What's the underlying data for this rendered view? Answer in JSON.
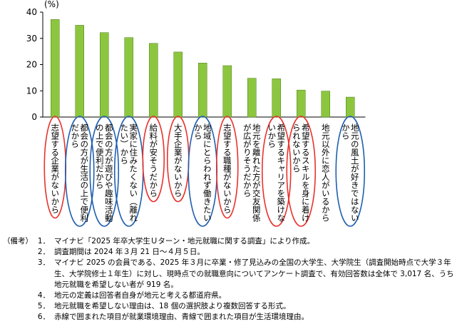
{
  "chart_data": {
    "type": "bar",
    "unit_label": "(%)",
    "ylim": [
      0,
      40
    ],
    "yticks": [
      0,
      10,
      20,
      30,
      40
    ],
    "bar_color": "#8cc63f",
    "categories": [
      "志望する企業がないから",
      "都会の方が生活の上で便利だから",
      "都会の方が遊びや趣味活動の上で便利だから",
      "実家に住みたくない（離れたい）から",
      "給料が安そうだから",
      "大手企業がないから",
      "地域にとらわれず働きたいから",
      "志望する職種がないから",
      "地元を離れた方が交友関係が広がりそうだから",
      "希望するキャリアを築けないから",
      "希望するスキルを身に着けられないから",
      "地元以外に恋人がいるから",
      "地元の風土が好きではないから"
    ],
    "values": [
      37.2,
      35.0,
      32.2,
      30.3,
      28.1,
      24.8,
      20.6,
      19.6,
      14.8,
      14.6,
      10.3,
      9.9,
      7.6
    ],
    "label_lines": [
      [
        "志望する企業がないから"
      ],
      [
        "都会の方が生活の上で便利",
        "だから"
      ],
      [
        "都会の方が遊びや趣味活動",
        "の上で便利だから"
      ],
      [
        "実家に住みたくない（離れ",
        "たい）から"
      ],
      [
        "給料が安そうだから"
      ],
      [
        "大手企業がないから"
      ],
      [
        "地域にとらわれず働きたい",
        "から"
      ],
      [
        "志望する職種がないから"
      ],
      [
        "地元を離れた方が交友関係",
        "が広がりそうだから"
      ],
      [
        "希望するキャリアを築けな",
        "いから"
      ],
      [
        "希望するスキルを身に着け",
        "られないから"
      ],
      [
        "地元以外に恋人がいるから"
      ],
      [
        "地元の風土が好きではない",
        "から"
      ]
    ],
    "ellipse_type": [
      "work",
      "life",
      "life",
      "life",
      "work",
      "work",
      "life",
      "work",
      "none",
      "work",
      "work",
      "none",
      "life"
    ],
    "ellipse_colors": {
      "work": "#e8322d",
      "life": "#1f5fb0"
    },
    "grid": false
  },
  "notes": {
    "heading": "（備考）",
    "items": [
      {
        "num": "1．",
        "text": "マイナビ「2025 年卒大学生Ｕターン・地元就職に関する調査」により作成。"
      },
      {
        "num": "2．",
        "text": "調査期間は 2024 年３月 21 日～４月５日。"
      },
      {
        "num": "3．",
        "text": "マイナビ 2025 の会員である、2025 年３月に卒業・修了見込みの全国の大学生、大学院生（調査開始時点で大学３年生、大学院修士１年生）に対し、現時点での就職意向についてアンケート調査で、有効回答数は全体で 3,017 名、うち地元就職を希望しない者が 919 名。"
      },
      {
        "num": "4．",
        "text": "地元の定義は回答者自身が地元と考える都道府県。"
      },
      {
        "num": "5．",
        "text": "地元就職を希望しない理由は、18 個の選択肢より複数回答する形式。"
      },
      {
        "num": "6．",
        "text": "赤線で囲まれた項目が就業環境理由、青線で囲まれた項目が生活環境理由。"
      }
    ]
  }
}
